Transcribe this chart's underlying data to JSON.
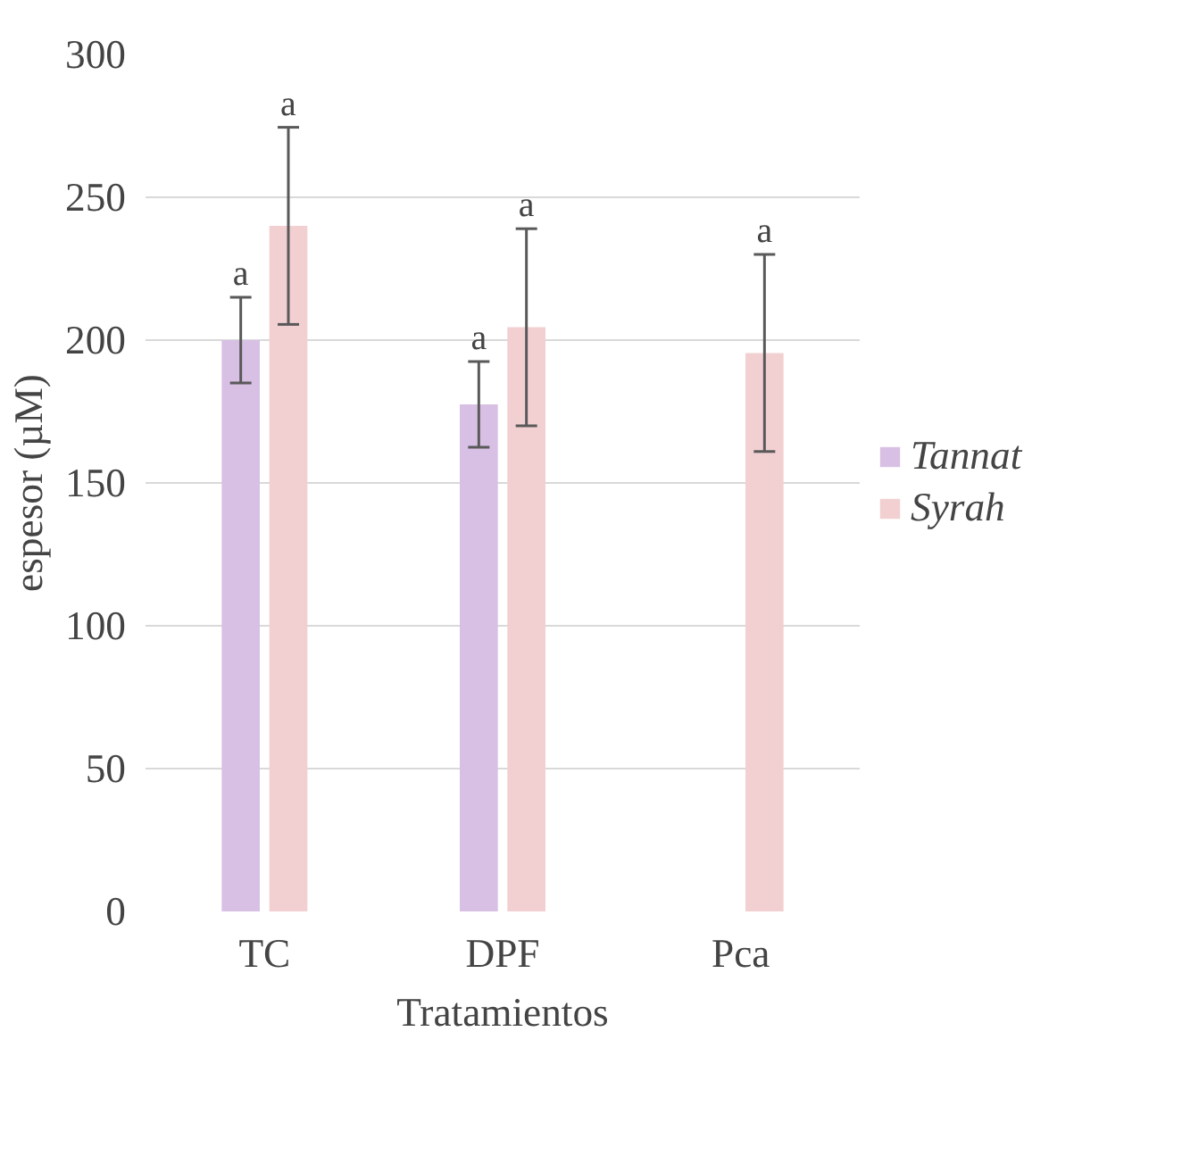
{
  "chart_data": {
    "type": "bar",
    "xlabel": "Tratamientos",
    "ylabel": "espesor (µM)",
    "categories": [
      "TC",
      "DPF",
      "Pca"
    ],
    "series": [
      {
        "name": "Tannat",
        "color": "#d8c0e5",
        "values": [
          200,
          177.5,
          null
        ],
        "errors": [
          15,
          15,
          null
        ]
      },
      {
        "name": "Syrah",
        "color": "#f2d0d2",
        "values": [
          240,
          204.5,
          195.5
        ],
        "errors": [
          34.5,
          34.5,
          34.5
        ]
      }
    ],
    "annotations": [
      "a",
      "a",
      "a",
      "a",
      "a"
    ],
    "ylim": [
      0,
      300
    ],
    "yticks": [
      0,
      50,
      100,
      150,
      200,
      250,
      300
    ],
    "grid": "y",
    "legend": "right"
  }
}
